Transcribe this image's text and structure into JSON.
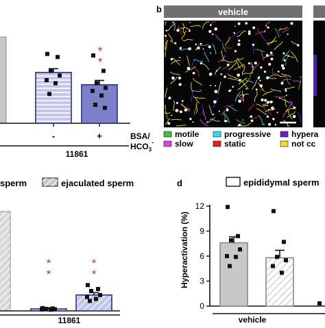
{
  "panel_letters": {
    "b": "b",
    "d": "d"
  },
  "colors": {
    "bar_gray": "#c8c8c8",
    "bar_gray_border": "#888888",
    "bar_blue_light": "#c3c6e6",
    "bar_blue_dark": "#7c80c6",
    "bar_blue_border": "#2b2f8c",
    "stripe_line": "#ffffff",
    "dots": "#111111",
    "sig_purple": "#9b2d8f",
    "vehicle_header": "#707070",
    "tracking_bg": "#060606"
  },
  "panel_a": {
    "conditions": {
      "bsa_label_line1": "BSA/",
      "bsa_label_line2": "HCO",
      "bsa_sub": "3",
      "bsa_sup": "-",
      "minus": "-",
      "plus": "+",
      "group": "11861"
    },
    "significance": [
      "*",
      "*"
    ]
  },
  "panel_b": {
    "header_label": "vehicle",
    "legend": [
      {
        "label": "motile",
        "color": "#3cc23c"
      },
      {
        "label": "slow",
        "color": "#e040e0"
      },
      {
        "label": "progressive",
        "color": "#40d8e8"
      },
      {
        "label": "static",
        "color": "#e02020"
      },
      {
        "label": "hypera",
        "color": "#6a1fc8"
      },
      {
        "label": "not cc",
        "color": "#f0e020"
      }
    ]
  },
  "panel_c": {
    "legend": [
      {
        "label": "sperm",
        "pattern": "solid"
      },
      {
        "label": "ejaculated sperm",
        "pattern": "hatched"
      }
    ],
    "group": "11861",
    "significance": [
      "*",
      "*"
    ]
  },
  "panel_d": {
    "legend": [
      {
        "label": "epididymal sperm",
        "pattern": "solid"
      }
    ],
    "ylabel": "Hyperactivation (%)",
    "xlabel": "vehicle"
  },
  "chart_data": [
    {
      "panel": "a",
      "type": "bar",
      "categories": [
        "-",
        "+"
      ],
      "values": [
        16.5,
        12.5
      ],
      "errors": [
        1.2,
        1.4
      ],
      "points": [
        [
          22.5,
          21.5,
          17,
          15.5,
          14,
          13,
          9.5
        ],
        [
          22,
          17,
          13,
          11.5,
          10.5,
          9,
          6,
          5
        ]
      ],
      "ylim": [
        0,
        30
      ]
    },
    {
      "panel": "c",
      "type": "bar",
      "series": [
        {
          "name": "sperm",
          "values": [
            0.5
          ]
        },
        {
          "name": "ejaculated sperm",
          "values": [
            4.0
          ]
        }
      ],
      "errors": [
        0.3,
        0.6
      ],
      "points": [
        [
          0.7,
          0.6,
          0.5,
          0.4,
          0.4,
          0.3
        ],
        [
          6.5,
          5.5,
          5,
          4,
          3.5,
          3,
          2.5
        ]
      ],
      "ylim": [
        0,
        25
      ]
    },
    {
      "panel": "d",
      "type": "bar",
      "categories": [
        "vehicle"
      ],
      "series": [
        {
          "name": "epididymal sperm",
          "values": [
            7.6
          ]
        },
        {
          "name": "",
          "values": [
            5.8
          ]
        }
      ],
      "errors": [
        0.7,
        0.9
      ],
      "points": [
        [
          11.9,
          8.4,
          7.9,
          6.8,
          6.0,
          5.9,
          4.8
        ],
        [
          11.4,
          7.7,
          5.9,
          5.5,
          4.8,
          4.0
        ]
      ],
      "yticks": [
        0,
        3,
        6,
        9,
        12
      ],
      "ylim": [
        0,
        12
      ],
      "ylabel": "Hyperactivation (%)",
      "xlabel": "vehicle"
    }
  ]
}
